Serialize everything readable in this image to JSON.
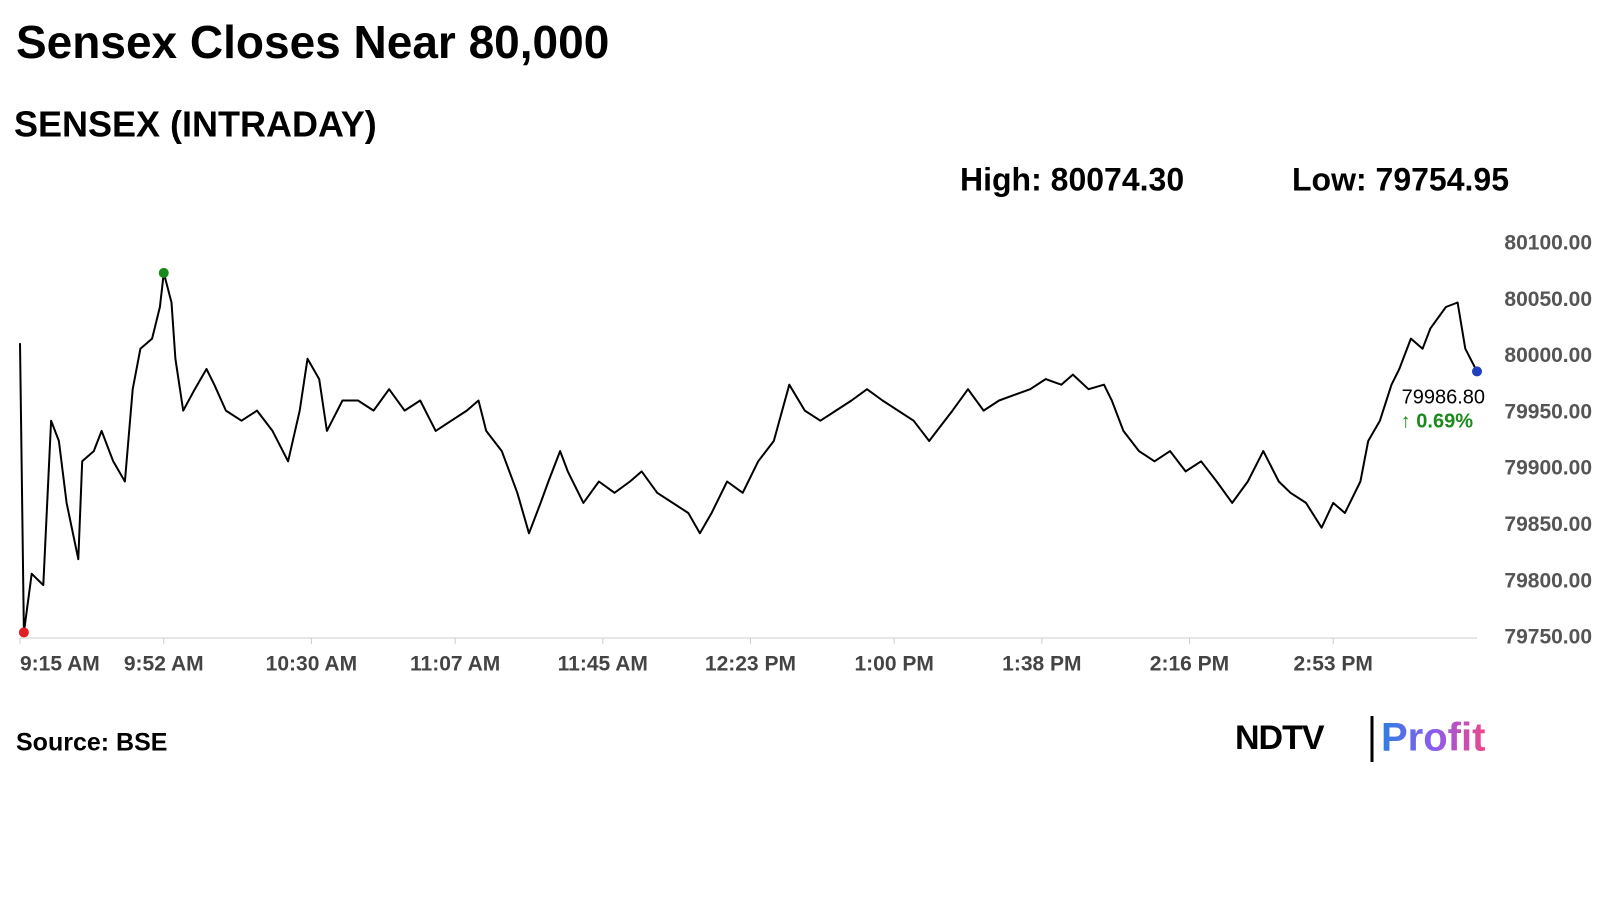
{
  "chart_data": {
    "type": "line",
    "title": "Sensex Closes Near 80,000",
    "subtitle": "SENSEX (INTRADAY)",
    "high_label": "High: 80074.30",
    "low_label": "Low: 79754.95",
    "last_label": "79986.80",
    "change_label": "↑ 0.69%",
    "source": "Source: BSE",
    "logo": [
      "NDTV",
      "Profit"
    ],
    "color": "#000000",
    "x": [
      555,
      556,
      558,
      561,
      563,
      565,
      567,
      570,
      571,
      574,
      576,
      579,
      582,
      584,
      586,
      589,
      591,
      592,
      594,
      595,
      597,
      600,
      603,
      605,
      608,
      612,
      616,
      620,
      624,
      627,
      629,
      632,
      634,
      638,
      642,
      646,
      650,
      654,
      658,
      662,
      666,
      670,
      673,
      675,
      679,
      683,
      686,
      689,
      691,
      694,
      696,
      700,
      704,
      708,
      712,
      715,
      719,
      723,
      727,
      730,
      733,
      737,
      741,
      745,
      749,
      753,
      757,
      761,
      765,
      769,
      773,
      777,
      781,
      785,
      789,
      791,
      795,
      799,
      803,
      807,
      811,
      815,
      819,
      823,
      826,
      830,
      834,
      836,
      839,
      843,
      847,
      851,
      855,
      859,
      863,
      867,
      871,
      875,
      879,
      882,
      886,
      890,
      893,
      896,
      900,
      902,
      905,
      908,
      910,
      913,
      916,
      918,
      922,
      925,
      927,
      930
    ],
    "values": [
      80012,
      79754.95,
      79807,
      79797,
      79943,
      79925,
      79870,
      79820,
      79907,
      79916,
      79934,
      79907,
      79889,
      79971,
      80007,
      80016,
      80044,
      80074.3,
      80048,
      79998,
      79952,
      79971,
      79989,
      79975,
      79952,
      79943,
      79952,
      79934,
      79907,
      79952,
      79998,
      79980,
      79934,
      79961,
      79961,
      79952,
      79971,
      79952,
      79961,
      79934,
      79943,
      79952,
      79961,
      79934,
      79916,
      79879,
      79843,
      79870,
      79889,
      79916,
      79898,
      79870,
      79889,
      79879,
      79889,
      79898,
      79879,
      79870,
      79861,
      79843,
      79861,
      79889,
      79879,
      79907,
      79925,
      79975,
      79952,
      79943,
      79952,
      79961,
      79971,
      79961,
      79952,
      79943,
      79925,
      79934,
      79952,
      79971,
      79952,
      79961,
      79966,
      79971,
      79980,
      79975,
      79984,
      79971,
      79975,
      79961,
      79934,
      79916,
      79907,
      79916,
      79898,
      79907,
      79889,
      79870,
      79889,
      79916,
      79889,
      79879,
      79870,
      79848,
      79870,
      79861,
      79889,
      79925,
      79943,
      79975,
      79989,
      80016,
      80007,
      80025,
      80044,
      80048,
      80007,
      79986.8
    ],
    "xlim": [
      555,
      930
    ],
    "xticks": [
      {
        "value": 555,
        "label": "9:15 AM"
      },
      {
        "value": 592,
        "label": "9:52 AM"
      },
      {
        "value": 630,
        "label": "10:30 AM"
      },
      {
        "value": 667,
        "label": "11:07 AM"
      },
      {
        "value": 705,
        "label": "11:45 AM"
      },
      {
        "value": 743,
        "label": "12:23 PM"
      },
      {
        "value": 780,
        "label": "1:00 PM"
      },
      {
        "value": 818,
        "label": "1:38 PM"
      },
      {
        "value": 856,
        "label": "2:16 PM"
      },
      {
        "value": 893,
        "label": "2:53 PM"
      }
    ],
    "ylim": [
      79750,
      80100
    ],
    "yticks": [
      {
        "value": 79750,
        "label": "79750.00"
      },
      {
        "value": 79800,
        "label": "79800.00"
      },
      {
        "value": 79850,
        "label": "79850.00"
      },
      {
        "value": 79900,
        "label": "79900.00"
      },
      {
        "value": 79950,
        "label": "79950.00"
      },
      {
        "value": 80000,
        "label": "80000.00"
      },
      {
        "value": 80050,
        "label": "80050.00"
      },
      {
        "value": 80100,
        "label": "80100.00"
      }
    ],
    "grid": false
  }
}
